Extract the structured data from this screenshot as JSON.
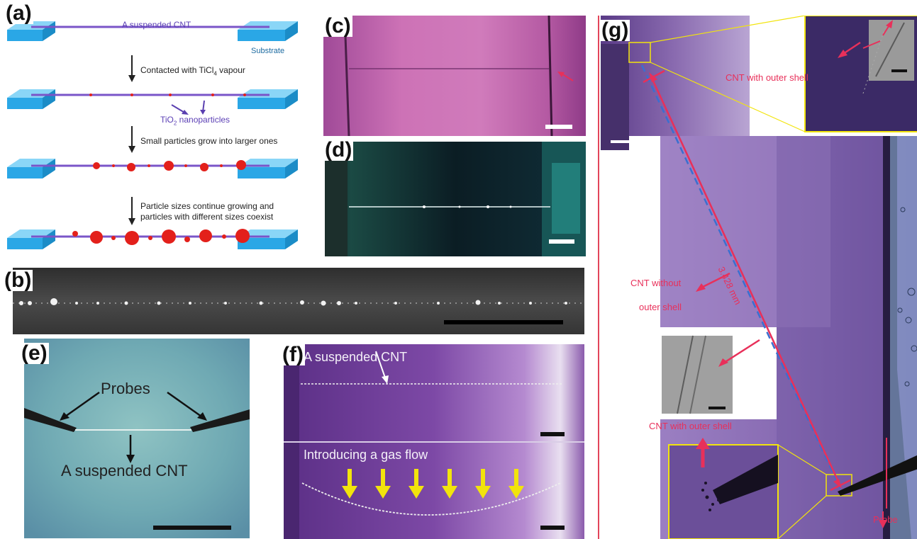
{
  "panels": {
    "a": {
      "label": "(a)",
      "top_text": "A suspended CNT",
      "substrate_label": "Substrate",
      "step1": "Contacted with TiCl",
      "step1_sub": "4",
      "step1_tail": " vapour",
      "nano_label": "TiO",
      "nano_sub": "2",
      "nano_tail": " nanoparticles",
      "step2": "Small particles grow into larger ones",
      "step3_line1": "Particle sizes continue growing and",
      "step3_line2": "particles with different sizes coexist"
    },
    "b": {
      "label": "(b)"
    },
    "c": {
      "label": "(c)"
    },
    "d": {
      "label": "(d)"
    },
    "e": {
      "label": "(e)",
      "probes": "Probes",
      "cnt": "A suspended CNT"
    },
    "f": {
      "label": "(f)",
      "top_text": "A suspended CNT",
      "bottom_text": "Introducing a gas flow"
    },
    "g": {
      "label": "(g)",
      "shell_top": "CNT with outer shell",
      "without_line1": "CNT without",
      "without_line2": "outer shell",
      "length": "3.428 mm",
      "shell_bottom": "CNT with outer shell",
      "probe": "Probe"
    }
  },
  "colors": {
    "substrate": "#2aa7e6",
    "cnt": "#7a55c8",
    "particle": "#e3201b",
    "purple_bg": "#6a3a9e",
    "annotation_red": "#e8305a",
    "yellow": "#f2e40c"
  }
}
